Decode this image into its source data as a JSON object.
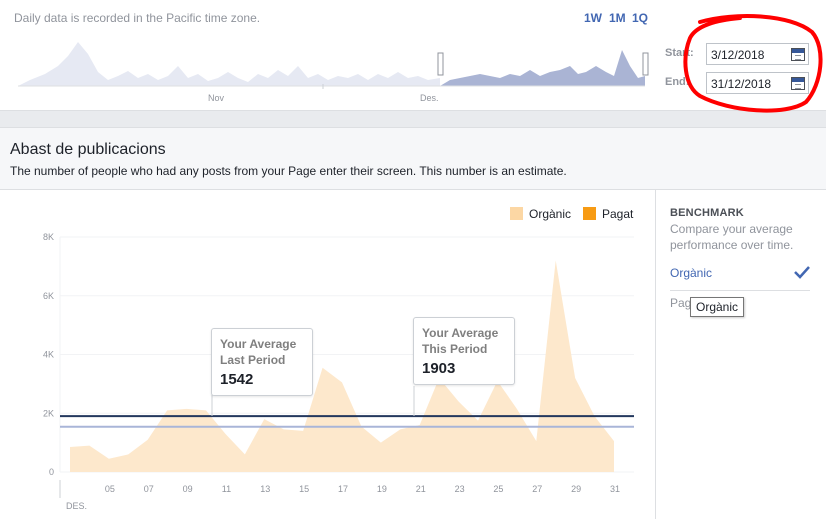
{
  "range": {
    "timezone_note": "Daily data is recorded in the Pacific time zone.",
    "granularity": [
      "1W",
      "1M",
      "1Q"
    ],
    "months": [
      "Nov",
      "Des."
    ],
    "start_label": "Start:",
    "start_value": "3/12/2018",
    "end_label": "End:",
    "end_value": "31/12/2018"
  },
  "card": {
    "title": "Abast de publicacions",
    "subtitle": "The number of people who had any posts from your Page enter their screen. This number is an estimate."
  },
  "legend": [
    {
      "label": "Orgànic",
      "color": "#fcd7a4"
    },
    {
      "label": "Pagat",
      "color": "#f79b14"
    }
  ],
  "benchmark": {
    "title": "BENCHMARK",
    "description": "Compare your average performance over time.",
    "option_selected": "Orgànic",
    "option_other": "Pagat",
    "tooltip": "Orgànic"
  },
  "averages": {
    "last_label_1": "Your Average",
    "last_label_2": "Last Period",
    "last_value": "1542",
    "this_label_1": "Your Average",
    "this_label_2": "This Period",
    "this_value": "1903"
  },
  "chart_data": {
    "type": "area",
    "x_tick_labels": [
      "05",
      "07",
      "09",
      "11",
      "13",
      "15",
      "17",
      "19",
      "21",
      "23",
      "25",
      "27",
      "29",
      "31"
    ],
    "x_month_label": "DES.",
    "y_tick_labels": [
      "0",
      "2K",
      "4K",
      "6K",
      "8K"
    ],
    "ylim": [
      0,
      8000
    ],
    "series": [
      {
        "name": "Orgànic",
        "color": "#fde8cc",
        "x": [
          3,
          4,
          5,
          6,
          7,
          8,
          9,
          10,
          11,
          12,
          13,
          14,
          15,
          16,
          17,
          18,
          19,
          20,
          21,
          22,
          23,
          24,
          25,
          26,
          27,
          28,
          29,
          30,
          31
        ],
        "values": [
          850,
          900,
          450,
          600,
          1100,
          2100,
          2150,
          2100,
          1300,
          600,
          1800,
          1450,
          1400,
          3550,
          3050,
          1550,
          1000,
          1450,
          1600,
          3200,
          2400,
          1750,
          3100,
          2150,
          1050,
          7200,
          3200,
          1900,
          1050
        ]
      }
    ],
    "reference_lines": [
      {
        "name": "Your Average This Period",
        "value": 1903,
        "color": "#23375d"
      },
      {
        "name": "Your Average Last Period",
        "value": 1542,
        "color": "#a9b5d8"
      }
    ]
  },
  "colors": {
    "accent": "#4267b2",
    "annotation": "#ff0000"
  },
  "icons": [
    "calendar-icon",
    "check-icon"
  ]
}
